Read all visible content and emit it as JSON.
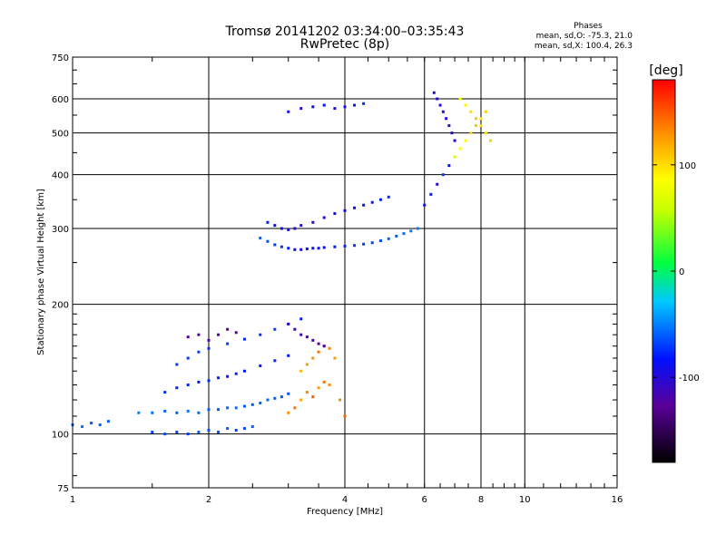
{
  "chart_data": {
    "type": "scatter",
    "title": "Tromsø 20141202 03:34:00–03:35:43",
    "subtitle": "RwPretec (8p)",
    "xlabel": "Frequency [MHz]",
    "ylabel": "Stationary phase Virtual Height [km]",
    "x_scale": "log",
    "y_scale": "log",
    "xlim": [
      1,
      16
    ],
    "ylim": [
      75,
      750
    ],
    "x_ticks": [
      1,
      2,
      4,
      6,
      8,
      10,
      16
    ],
    "x_tick_labels": [
      "1",
      "2",
      "4",
      "6",
      "8",
      "10",
      "16"
    ],
    "y_ticks": [
      75,
      100,
      200,
      300,
      400,
      500,
      600,
      750
    ],
    "y_tick_labels": [
      "75",
      "100",
      "200",
      "300",
      "400",
      "500",
      "600",
      "750"
    ],
    "grid": true,
    "phase_info": {
      "header": "Phases",
      "line_o": "mean, sd,O: -75.3, 21.0",
      "line_x": "mean, sd,X: 100.4, 26.3"
    },
    "colorbar": {
      "label": "[deg]",
      "min": -180,
      "max": 180,
      "ticks": [
        100,
        0,
        -100
      ],
      "tick_labels": [
        "100",
        "0",
        "-100"
      ],
      "colors": [
        "#000000",
        "#5a009a",
        "#0010ff",
        "#00c8ff",
        "#00ff40",
        "#c8ff00",
        "#ffff00",
        "#ff9000",
        "#ff0000"
      ]
    },
    "series": [
      {
        "x": [
          1.0,
          1.05,
          1.1,
          1.15,
          1.2,
          1.5,
          1.6,
          1.7,
          1.8,
          1.9,
          2.0,
          2.1,
          2.2,
          2.3,
          2.4,
          2.5
        ],
        "y": [
          105,
          104,
          106,
          105,
          107,
          101,
          100,
          101,
          100,
          101,
          102,
          101,
          103,
          102,
          103,
          104
        ],
        "phase": [
          -60,
          -55,
          -62,
          -58,
          -60,
          -70,
          -65,
          -68,
          -72,
          -60,
          -64,
          -66,
          -62,
          -70,
          -65,
          -60
        ]
      },
      {
        "x": [
          1.4,
          1.5,
          1.6,
          1.7,
          1.8,
          1.9,
          2.0,
          2.1,
          2.2,
          2.3,
          2.4,
          2.5,
          2.6,
          2.7,
          2.8,
          2.9,
          3.0
        ],
        "y": [
          112,
          112,
          113,
          112,
          113,
          112,
          114,
          114,
          115,
          115,
          116,
          117,
          118,
          120,
          121,
          122,
          124
        ],
        "phase": [
          -50,
          -55,
          -58,
          -60,
          -52,
          -56,
          -60,
          -62,
          -58,
          -55,
          -60,
          -62,
          -58,
          -56,
          -60,
          -62,
          -64
        ]
      },
      {
        "x": [
          1.6,
          1.7,
          1.8,
          1.9,
          2.0,
          2.1,
          2.2,
          2.3,
          2.4,
          2.6,
          2.8,
          3.0
        ],
        "y": [
          125,
          128,
          130,
          132,
          133,
          135,
          136,
          138,
          140,
          144,
          148,
          152
        ],
        "phase": [
          -75,
          -80,
          -78,
          -82,
          -76,
          -80,
          -85,
          -78,
          -82,
          -80,
          -76,
          -84
        ]
      },
      {
        "x": [
          1.7,
          1.8,
          1.9,
          2.0,
          2.2,
          2.4,
          2.6,
          2.8,
          3.0,
          3.2
        ],
        "y": [
          145,
          150,
          155,
          158,
          162,
          166,
          170,
          175,
          180,
          185
        ],
        "phase": [
          -70,
          -72,
          -68,
          -74,
          -70,
          -76,
          -72,
          -70,
          -74,
          -78
        ]
      },
      {
        "x": [
          1.8,
          1.9,
          2.0,
          2.1,
          2.2,
          2.3
        ],
        "y": [
          168,
          170,
          165,
          170,
          175,
          172
        ],
        "phase": [
          -120,
          -125,
          -118,
          -122,
          -126,
          -120
        ]
      },
      {
        "x": [
          2.6,
          2.7,
          2.8,
          2.9,
          3.0,
          3.1,
          3.2,
          3.3,
          3.4,
          3.5,
          3.6,
          3.8,
          4.0,
          4.2,
          4.4,
          4.6,
          4.8,
          5.0,
          5.2,
          5.4,
          5.6,
          5.8
        ],
        "y": [
          285,
          280,
          275,
          272,
          270,
          268,
          268,
          269,
          270,
          270,
          271,
          272,
          273,
          274,
          276,
          278,
          281,
          284,
          288,
          292,
          296,
          300
        ],
        "phase": [
          -60,
          -65,
          -70,
          -72,
          -80,
          -90,
          -95,
          -90,
          -92,
          -88,
          -85,
          -80,
          -75,
          -72,
          -70,
          -68,
          -65,
          -60,
          -58,
          -55,
          -52,
          -50
        ]
      },
      {
        "x": [
          2.7,
          2.8,
          2.9,
          3.0,
          3.1,
          3.2,
          3.4,
          3.6,
          3.8,
          4.0,
          4.2,
          4.4,
          4.6,
          4.8,
          5.0
        ],
        "y": [
          310,
          305,
          300,
          298,
          300,
          305,
          310,
          318,
          325,
          330,
          335,
          340,
          345,
          350,
          355
        ],
        "phase": [
          -80,
          -85,
          -90,
          -95,
          -92,
          -98,
          -100,
          -96,
          -92,
          -88,
          -85,
          -82,
          -80,
          -78,
          -75
        ]
      },
      {
        "x": [
          3.0,
          3.1,
          3.2,
          3.3,
          3.4,
          3.5,
          3.6,
          3.7
        ],
        "y": [
          112,
          115,
          120,
          125,
          122,
          128,
          132,
          130
        ],
        "phase": [
          130,
          140,
          120,
          135,
          150,
          125,
          140,
          130
        ]
      },
      {
        "x": [
          3.2,
          3.3,
          3.4,
          3.5,
          3.6,
          3.7,
          3.8,
          3.9,
          4.0
        ],
        "y": [
          140,
          145,
          150,
          155,
          160,
          158,
          150,
          120,
          110
        ],
        "phase": [
          115,
          125,
          130,
          140,
          150,
          135,
          125,
          130,
          145
        ]
      },
      {
        "x": [
          3.0,
          3.1,
          3.2,
          3.3,
          3.4,
          3.5,
          3.6
        ],
        "y": [
          180,
          175,
          170,
          168,
          165,
          162,
          160
        ],
        "phase": [
          -110,
          -115,
          -120,
          -118,
          -122,
          -125,
          -120
        ]
      },
      {
        "x": [
          6.0,
          6.2,
          6.4,
          6.6,
          6.8,
          7.0,
          7.2,
          7.4,
          7.6,
          7.8,
          8.0,
          8.2
        ],
        "y": [
          340,
          360,
          380,
          400,
          420,
          440,
          460,
          480,
          500,
          520,
          540,
          560
        ],
        "phase": [
          -90,
          -80,
          -100,
          -70,
          -85,
          60,
          80,
          90,
          100,
          110,
          95,
          105
        ]
      },
      {
        "x": [
          6.3,
          6.4,
          6.5,
          6.6,
          6.7,
          6.8,
          6.9,
          7.0
        ],
        "y": [
          620,
          600,
          580,
          560,
          540,
          520,
          500,
          480
        ],
        "phase": [
          -110,
          -105,
          -100,
          -95,
          -100,
          -110,
          -105,
          -100
        ]
      },
      {
        "x": [
          7.2,
          7.4,
          7.6,
          7.8,
          8.0,
          8.2,
          8.4
        ],
        "y": [
          600,
          580,
          560,
          540,
          520,
          500,
          480
        ],
        "phase": [
          80,
          90,
          100,
          110,
          100,
          95,
          105
        ]
      },
      {
        "x": [
          3.0,
          3.2,
          3.4,
          3.6,
          3.8,
          4.0,
          4.2,
          4.4
        ],
        "y": [
          560,
          570,
          575,
          580,
          570,
          575,
          580,
          585
        ],
        "phase": [
          -95,
          -100,
          -90,
          -85,
          -92,
          -88,
          -80,
          -75
        ]
      }
    ]
  }
}
